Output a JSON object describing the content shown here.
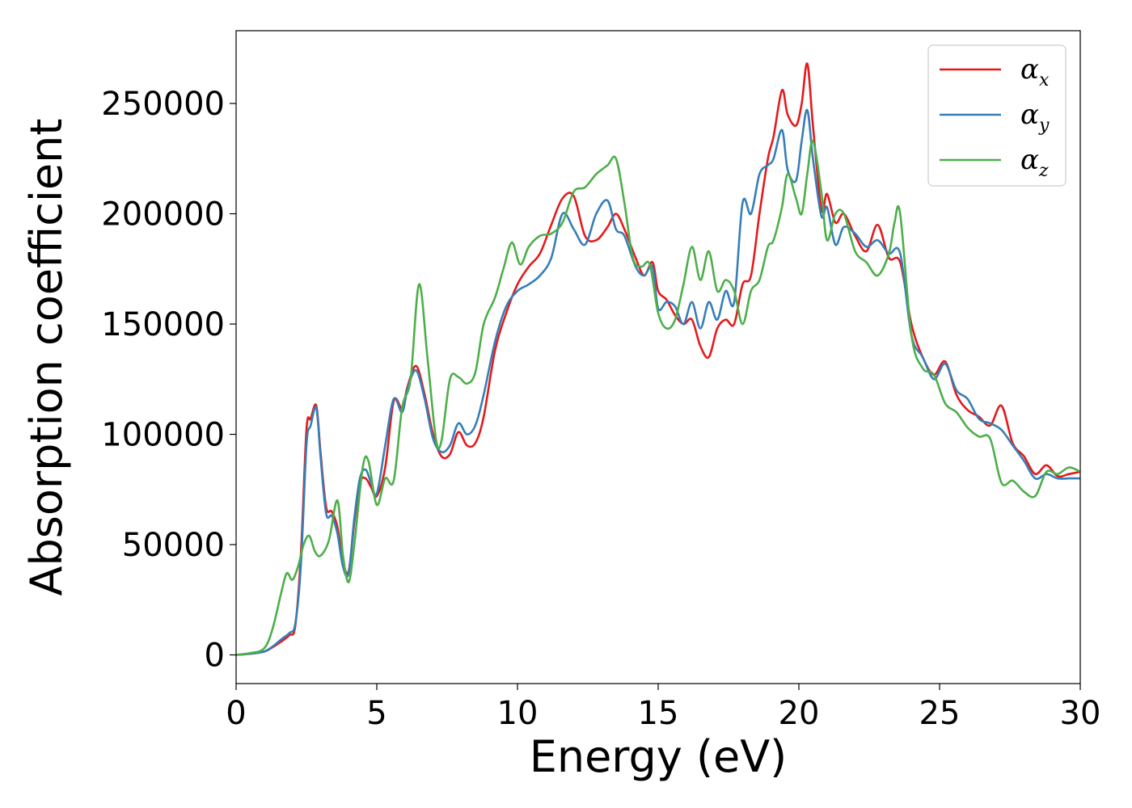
{
  "chart_data": {
    "type": "line",
    "title": "",
    "xlabel": "Energy (eV)",
    "ylabel": "Absorption coefficient",
    "xlim": [
      0,
      30
    ],
    "ylim": [
      -13000,
      283000
    ],
    "xticks": [
      0,
      5,
      10,
      15,
      20,
      25,
      30
    ],
    "xtick_labels": [
      "0",
      "5",
      "10",
      "15",
      "20",
      "25",
      "30"
    ],
    "yticks": [
      0,
      50000,
      100000,
      150000,
      200000,
      250000
    ],
    "ytick_labels": [
      "0",
      "50000",
      "100000",
      "150000",
      "200000",
      "250000"
    ],
    "grid": false,
    "legend_position": "top-right",
    "series": [
      {
        "name": "α",
        "subscript": "x",
        "color": "#e41a1c",
        "x": [
          0,
          0.5,
          1,
          1.3,
          1.6,
          1.9,
          2.1,
          2.3,
          2.5,
          2.65,
          2.85,
          3.0,
          3.2,
          3.4,
          3.6,
          3.8,
          4.0,
          4.2,
          4.4,
          4.6,
          4.8,
          5.0,
          5.3,
          5.6,
          5.9,
          6.1,
          6.4,
          6.7,
          7.0,
          7.3,
          7.6,
          7.9,
          8.2,
          8.5,
          8.8,
          9.2,
          9.6,
          10.0,
          10.4,
          10.8,
          11.2,
          11.6,
          12.0,
          12.4,
          12.8,
          13.2,
          13.5,
          13.8,
          14.2,
          14.5,
          14.8,
          15.0,
          15.3,
          15.6,
          15.9,
          16.2,
          16.5,
          16.8,
          17.1,
          17.4,
          17.7,
          18.0,
          18.3,
          18.6,
          18.9,
          19.1,
          19.4,
          19.6,
          19.9,
          20.1,
          20.3,
          20.5,
          20.8,
          21.0,
          21.3,
          21.6,
          22.0,
          22.4,
          22.8,
          23.2,
          23.6,
          24.0,
          24.4,
          24.8,
          25.2,
          25.6,
          26.0,
          26.4,
          26.8,
          27.2,
          27.6,
          28.0,
          28.4,
          28.8,
          29.2,
          29.6,
          30.0
        ],
        "values": [
          0,
          500,
          1500,
          3500,
          6000,
          9000,
          13000,
          45000,
          102000,
          107000,
          113000,
          92000,
          67000,
          65000,
          58000,
          42000,
          38000,
          60000,
          78000,
          80000,
          76000,
          72000,
          85000,
          115000,
          112000,
          122000,
          131000,
          118000,
          100000,
          90000,
          91000,
          101000,
          95000,
          96000,
          108000,
          138000,
          155000,
          168000,
          176000,
          182000,
          195000,
          207000,
          208000,
          190000,
          188000,
          194000,
          200000,
          193000,
          180000,
          172000,
          178000,
          165000,
          161000,
          154000,
          150000,
          152000,
          140000,
          135000,
          148000,
          152000,
          150000,
          168000,
          172000,
          200000,
          225000,
          235000,
          256000,
          245000,
          240000,
          250000,
          268000,
          240000,
          202000,
          209000,
          196000,
          200000,
          190000,
          183000,
          195000,
          180000,
          178000,
          150000,
          135000,
          127000,
          133000,
          118000,
          111000,
          108000,
          104000,
          113000,
          96000,
          90000,
          82000,
          86000,
          81000,
          82000,
          83000
        ]
      },
      {
        "name": "α",
        "subscript": "y",
        "color": "#377eb8",
        "x": [
          0,
          0.5,
          1,
          1.3,
          1.6,
          1.9,
          2.1,
          2.3,
          2.5,
          2.65,
          2.85,
          3.0,
          3.2,
          3.4,
          3.6,
          3.8,
          4.0,
          4.2,
          4.4,
          4.6,
          4.8,
          5.0,
          5.3,
          5.6,
          5.9,
          6.1,
          6.4,
          6.7,
          7.0,
          7.3,
          7.6,
          7.9,
          8.2,
          8.5,
          8.8,
          9.2,
          9.6,
          10.0,
          10.4,
          10.8,
          11.2,
          11.6,
          12.0,
          12.4,
          12.8,
          13.2,
          13.5,
          13.8,
          14.2,
          14.5,
          14.8,
          15.0,
          15.3,
          15.6,
          15.9,
          16.2,
          16.5,
          16.8,
          17.1,
          17.4,
          17.7,
          18.0,
          18.3,
          18.6,
          18.9,
          19.1,
          19.4,
          19.6,
          19.9,
          20.1,
          20.3,
          20.5,
          20.8,
          21.0,
          21.3,
          21.6,
          22.0,
          22.4,
          22.8,
          23.2,
          23.6,
          24.0,
          24.4,
          24.8,
          25.2,
          25.6,
          26.0,
          26.4,
          26.8,
          27.2,
          27.6,
          28.0,
          28.4,
          28.8,
          29.2,
          29.6,
          30.0
        ],
        "values": [
          0,
          500,
          1500,
          3800,
          7000,
          10000,
          14000,
          40000,
          95000,
          104000,
          112000,
          90000,
          64000,
          63000,
          55000,
          40000,
          37000,
          62000,
          80000,
          84000,
          78000,
          73000,
          95000,
          116000,
          110000,
          121000,
          129000,
          116000,
          98000,
          92000,
          95000,
          105000,
          100000,
          104000,
          118000,
          142000,
          158000,
          165000,
          168000,
          172000,
          180000,
          200000,
          193000,
          186000,
          200000,
          206000,
          193000,
          190000,
          176000,
          172000,
          176000,
          157000,
          160000,
          158000,
          150000,
          160000,
          148000,
          160000,
          152000,
          165000,
          160000,
          205000,
          200000,
          218000,
          222000,
          225000,
          238000,
          220000,
          215000,
          233000,
          247000,
          225000,
          199000,
          203000,
          186000,
          194000,
          191000,
          185000,
          188000,
          182000,
          182000,
          145000,
          135000,
          125000,
          132000,
          120000,
          116000,
          107000,
          105000,
          102000,
          95000,
          88000,
          80000,
          82000,
          80000,
          80000,
          80000
        ]
      },
      {
        "name": "α",
        "subscript": "z",
        "color": "#4daf4a",
        "x": [
          0,
          0.5,
          1,
          1.3,
          1.6,
          1.8,
          2.0,
          2.2,
          2.4,
          2.6,
          2.8,
          3.0,
          3.3,
          3.6,
          3.8,
          4.0,
          4.2,
          4.5,
          4.7,
          5.0,
          5.3,
          5.6,
          5.9,
          6.2,
          6.5,
          6.8,
          7.1,
          7.3,
          7.6,
          7.9,
          8.2,
          8.5,
          8.8,
          9.2,
          9.5,
          9.8,
          10.1,
          10.4,
          10.8,
          11.2,
          11.6,
          12.0,
          12.4,
          12.8,
          13.2,
          13.5,
          13.8,
          14.1,
          14.4,
          14.7,
          15.0,
          15.3,
          15.6,
          15.9,
          16.2,
          16.5,
          16.8,
          17.1,
          17.4,
          17.7,
          18.0,
          18.3,
          18.6,
          18.9,
          19.1,
          19.4,
          19.6,
          19.9,
          20.1,
          20.3,
          20.5,
          20.8,
          21.0,
          21.3,
          21.6,
          22.0,
          22.4,
          22.8,
          23.2,
          23.4,
          23.6,
          24.0,
          24.4,
          24.8,
          25.2,
          25.6,
          26.0,
          26.4,
          26.8,
          27.2,
          27.6,
          28.0,
          28.4,
          28.8,
          29.2,
          29.6,
          30.0
        ],
        "values": [
          0,
          800,
          3000,
          12000,
          28000,
          37000,
          34000,
          40000,
          50000,
          54000,
          47000,
          45000,
          52000,
          70000,
          45000,
          33000,
          50000,
          85000,
          88000,
          68000,
          80000,
          79000,
          112000,
          125000,
          168000,
          135000,
          98000,
          97000,
          125000,
          126000,
          123000,
          128000,
          150000,
          162000,
          175000,
          187000,
          177000,
          185000,
          190000,
          191000,
          196000,
          210000,
          212000,
          218000,
          222000,
          225000,
          205000,
          180000,
          176000,
          177000,
          155000,
          148000,
          152000,
          168000,
          185000,
          170000,
          183000,
          165000,
          170000,
          165000,
          150000,
          165000,
          170000,
          185000,
          188000,
          203000,
          218000,
          207000,
          200000,
          218000,
          233000,
          210000,
          188000,
          200000,
          200000,
          183000,
          178000,
          172000,
          182000,
          196000,
          200000,
          145000,
          130000,
          127000,
          114000,
          110000,
          103000,
          99000,
          98000,
          78000,
          79000,
          74000,
          72000,
          83000,
          82000,
          85000,
          83000
        ]
      }
    ]
  }
}
